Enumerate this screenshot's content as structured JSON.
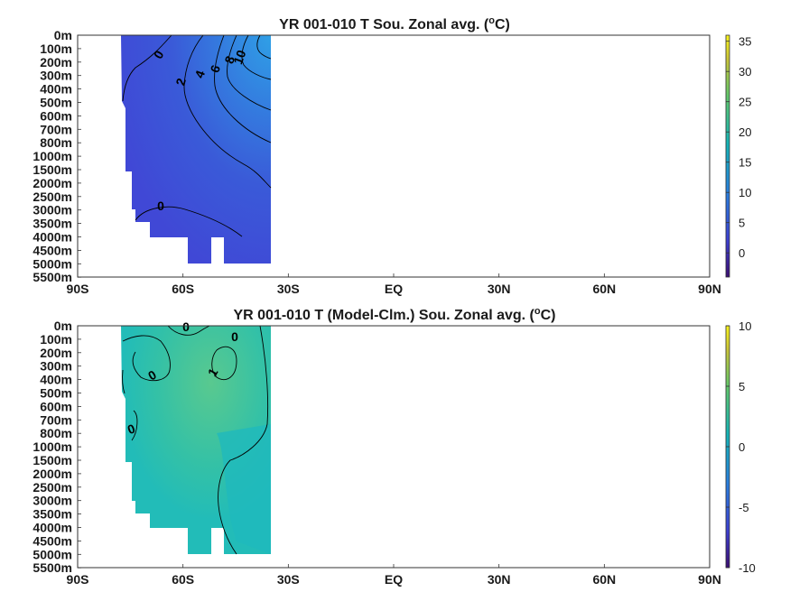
{
  "chart_data": [
    {
      "type": "heatmap",
      "title_main": "YR 001-010 T Sou. Zonal avg. (",
      "title_sup": "o",
      "title_end": "C)",
      "xlabel": "",
      "ylabel": "",
      "x_ticks": [
        "90S",
        "60S",
        "30S",
        "EQ",
        "30N",
        "60N",
        "90N"
      ],
      "x_values": [
        -90,
        -60,
        -30,
        0,
        30,
        60,
        90
      ],
      "y_ticks": [
        "0m",
        "100m",
        "200m",
        "300m",
        "400m",
        "500m",
        "600m",
        "700m",
        "800m",
        "1000m",
        "1500m",
        "2000m",
        "2500m",
        "3000m",
        "3500m",
        "4000m",
        "4500m",
        "5000m",
        "5500m"
      ],
      "colorbar": {
        "ticks": [
          "35",
          "30",
          "25",
          "20",
          "15",
          "10",
          "5",
          "0"
        ],
        "values": [
          35,
          30,
          25,
          20,
          15,
          10,
          5,
          0
        ],
        "range": [
          -4,
          36
        ]
      },
      "contour_labels": [
        "0",
        "2",
        "4",
        "6",
        "8",
        "10",
        "0"
      ],
      "data_extent_lat": [
        -78,
        -35
      ]
    },
    {
      "type": "heatmap",
      "title_main": "YR 001-010 T (Model-Clm.) Sou. Zonal avg. (",
      "title_sup": "o",
      "title_end": "C)",
      "xlabel": "",
      "ylabel": "",
      "x_ticks": [
        "90S",
        "60S",
        "30S",
        "EQ",
        "30N",
        "60N",
        "90N"
      ],
      "x_values": [
        -90,
        -60,
        -30,
        0,
        30,
        60,
        90
      ],
      "y_ticks": [
        "0m",
        "100m",
        "200m",
        "300m",
        "400m",
        "500m",
        "600m",
        "700m",
        "800m",
        "1000m",
        "1500m",
        "2000m",
        "2500m",
        "3000m",
        "3500m",
        "4000m",
        "4500m",
        "5000m",
        "5500m"
      ],
      "colorbar": {
        "ticks": [
          "10",
          "5",
          "0",
          "-5",
          "-10"
        ],
        "values": [
          10,
          5,
          0,
          -5,
          -10
        ],
        "range": [
          -10,
          10
        ]
      },
      "contour_labels": [
        "0",
        "0",
        "1",
        "0",
        "0"
      ],
      "data_extent_lat": [
        -78,
        -35
      ]
    }
  ],
  "colors": {
    "panel1_fill_top": "#3a55d8",
    "panel1_fill_deep": "#4a52e0",
    "panel2_fill": "#28b8b0",
    "panel2_fill_warm": "#3ec8a0"
  }
}
